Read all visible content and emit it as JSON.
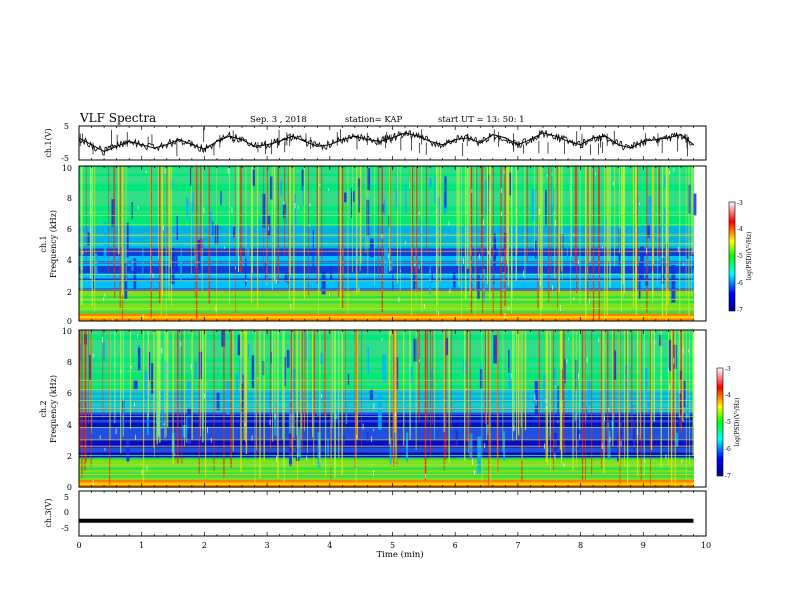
{
  "header": {
    "title": "VLF Spectra",
    "date": "Sep. 3  , 2018",
    "station": "station= KAP",
    "start_time": "start  UT  =   13: 50: 1"
  },
  "colors": {
    "trace": "#000000",
    "colormap": [
      "#ffffff",
      "#ff0000",
      "#ffff00",
      "#00ff00",
      "#00ffff",
      "#0000ff",
      "#00008b"
    ]
  },
  "chart_data": [
    {
      "id": "ch1-waveform",
      "type": "line",
      "ylabel": "ch.1(V)",
      "ylim": [
        -5,
        5
      ],
      "yticks": [
        "5",
        "-5"
      ],
      "xlim": [
        0,
        10
      ],
      "x": [
        0,
        0.2,
        0.4,
        0.6,
        0.8,
        1.0,
        1.2,
        1.4,
        1.6,
        1.8,
        2.0,
        2.2,
        2.4,
        2.6,
        2.8,
        3.0,
        3.2,
        3.4,
        3.6,
        3.8,
        4.0,
        4.2,
        4.4,
        4.6,
        4.8,
        5.0,
        5.2,
        5.4,
        5.6,
        5.8,
        6.0,
        6.2,
        6.4,
        6.6,
        6.8,
        7.0,
        7.2,
        7.4,
        7.6,
        7.8,
        8.0,
        8.2,
        8.4,
        8.6,
        8.8,
        9.0,
        9.2,
        9.4,
        9.6,
        9.8
      ],
      "values": [
        1.5,
        -0.5,
        -2.5,
        -1.0,
        0.5,
        -0.5,
        -1.5,
        -0.5,
        1.0,
        -0.5,
        -1.8,
        0.5,
        2.0,
        1.0,
        -1.0,
        -0.5,
        0.5,
        2.0,
        0.5,
        -1.0,
        -0.5,
        1.0,
        2.0,
        1.0,
        0.5,
        1.5,
        3.0,
        2.0,
        0.5,
        -0.5,
        1.0,
        1.5,
        0.0,
        2.5,
        1.5,
        -0.5,
        1.0,
        3.0,
        2.0,
        0.5,
        -0.5,
        1.5,
        2.0,
        -0.5,
        -1.5,
        0.5,
        1.0,
        1.5,
        2.5,
        -0.5
      ]
    },
    {
      "id": "ch1-spectrogram",
      "type": "heatmap",
      "ylabel_top": "ch.1",
      "ylabel": "Frequency (kHz)",
      "ylim": [
        0,
        10
      ],
      "yticks": [
        "0",
        "2",
        "4",
        "6",
        "8",
        "10"
      ],
      "xlim": [
        0,
        10
      ],
      "colorbar": {
        "label": "log(PSD)(V²/Hz)",
        "range": [
          -7,
          -3
        ],
        "ticks": [
          "-3",
          "-4",
          "-5",
          "-6",
          "-7"
        ]
      }
    },
    {
      "id": "ch2-spectrogram",
      "type": "heatmap",
      "ylabel_top": "ch.2",
      "ylabel": "Frequency (kHz)",
      "ylim": [
        0,
        10
      ],
      "yticks": [
        "0",
        "2",
        "4",
        "6",
        "8",
        "10"
      ],
      "xlim": [
        0,
        10
      ],
      "colorbar": {
        "label": "log(PSD)(V²/Hz)",
        "range": [
          -7,
          -3
        ],
        "ticks": [
          "-3",
          "-4",
          "-5",
          "-6",
          "-7"
        ]
      }
    },
    {
      "id": "ch3-waveform",
      "type": "line",
      "ylabel": "ch.3(V)",
      "ylim": [
        -5,
        5
      ],
      "yticks": [
        "5",
        "0",
        "-5"
      ],
      "xlim": [
        0,
        9.8
      ],
      "x": [
        0,
        9.8
      ],
      "values": [
        -1.6,
        -1.6
      ]
    },
    {
      "id": "time-axis",
      "type": "line",
      "xlabel": "Time (min)",
      "xticks": [
        "0",
        "1",
        "2",
        "3",
        "4",
        "5",
        "6",
        "7",
        "8",
        "9",
        "10"
      ],
      "xlim": [
        0,
        10
      ]
    }
  ]
}
